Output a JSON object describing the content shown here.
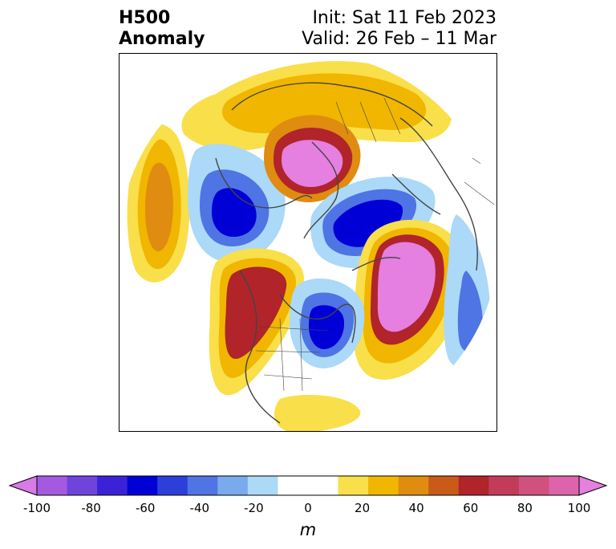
{
  "title": {
    "line1": "H500",
    "line2": "Anomaly"
  },
  "subtitle": {
    "init": "Init: Sat 11 Feb 2023",
    "valid": "Valid: 26 Feb – 11 Mar"
  },
  "colorbar": {
    "ticks": [
      "-100",
      "-80",
      "-60",
      "-40",
      "-20",
      "0",
      "20",
      "40",
      "60",
      "80",
      "100"
    ],
    "units": "m",
    "colors": [
      "#d77be6",
      "#a45ae0",
      "#6e44dd",
      "#3c22d6",
      "#0000d6",
      "#2d3fd9",
      "#4f74e3",
      "#7aaaee",
      "#abd9f7",
      "#ffffff",
      "#ffffff",
      "#f9df4a",
      "#f0b600",
      "#df8c10",
      "#c95a18",
      "#b0242a",
      "#c43b5a",
      "#d0507e",
      "#dd64aa",
      "#e57fe0"
    ],
    "range": [
      -100,
      100
    ]
  },
  "map_colors": {
    "magenta": "#e57fe0",
    "red": "#b0242a",
    "orange": "#df8c10",
    "amber": "#f0b600",
    "yellow": "#f9df4a",
    "lightblue": "#abd9f7",
    "blue": "#4f74e3",
    "darkblue": "#0000d6"
  }
}
